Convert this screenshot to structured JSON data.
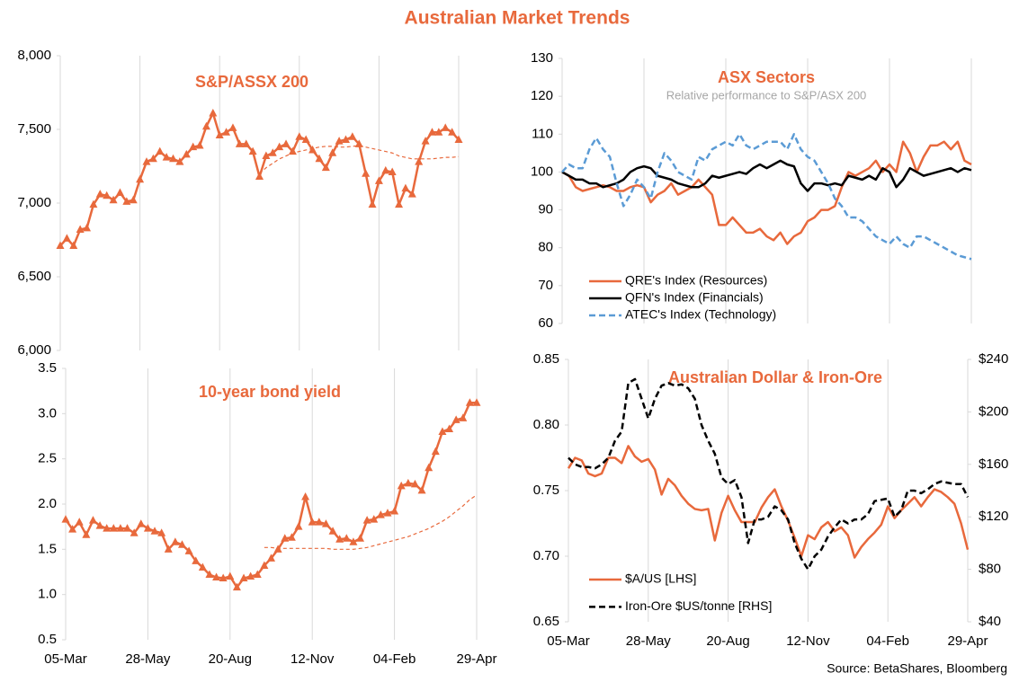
{
  "title": "Australian Market Trends",
  "source": "Source: BetaShares, Bloomberg",
  "chart_data": [
    {
      "type": "line",
      "title": "S&P/ASSX 200",
      "grid": "vertical",
      "ylim": [
        6000,
        8000
      ],
      "yticks": [
        {
          "value": 6000,
          "label": "6,000"
        },
        {
          "value": 6500,
          "label": "6,500"
        },
        {
          "value": 7000,
          "label": "7,000"
        },
        {
          "value": 7500,
          "label": "7,500"
        },
        {
          "value": 8000,
          "label": "8,000"
        }
      ],
      "series": [
        {
          "color": "#e8693c",
          "marker": "triangle",
          "values": [
            6710,
            6760,
            6710,
            6820,
            6830,
            6990,
            7060,
            7050,
            7020,
            7070,
            7010,
            7020,
            7160,
            7280,
            7300,
            7350,
            7310,
            7300,
            7280,
            7330,
            7380,
            7390,
            7520,
            7610,
            7460,
            7480,
            7510,
            7400,
            7400,
            7350,
            7180,
            7320,
            7340,
            7380,
            7400,
            7350,
            7450,
            7430,
            7360,
            7300,
            7240,
            7340,
            7420,
            7430,
            7450,
            7400,
            7200,
            6990,
            7150,
            7220,
            7210,
            6990,
            7100,
            7060,
            7280,
            7420,
            7480,
            7480,
            7510,
            7480,
            7430
          ]
        },
        {
          "color": "#e8693c",
          "dash": true,
          "values": [
            null,
            null,
            null,
            null,
            null,
            null,
            null,
            null,
            null,
            null,
            null,
            null,
            null,
            null,
            null,
            null,
            null,
            null,
            null,
            null,
            null,
            null,
            null,
            null,
            null,
            null,
            null,
            null,
            null,
            null,
            7200,
            7240,
            7270,
            7300,
            7320,
            7340,
            7350,
            7360,
            7370,
            7380,
            7385,
            7385,
            7380,
            7380,
            7385,
            7390,
            7380,
            7370,
            7360,
            7350,
            7340,
            7320,
            7310,
            7300,
            7300,
            7300,
            7300,
            7305,
            7310,
            7310,
            7315
          ]
        }
      ]
    },
    {
      "type": "line",
      "title": "10-year bond yield",
      "grid": "vertical",
      "categories": [
        "05-Mar",
        null,
        null,
        null,
        null,
        null,
        null,
        null,
        null,
        null,
        null,
        null,
        "28-May",
        null,
        null,
        null,
        null,
        null,
        null,
        null,
        null,
        null,
        null,
        null,
        "20-Aug",
        null,
        null,
        null,
        null,
        null,
        null,
        null,
        null,
        null,
        null,
        null,
        "12-Nov",
        null,
        null,
        null,
        null,
        null,
        null,
        null,
        null,
        null,
        null,
        null,
        "04-Feb",
        null,
        null,
        null,
        null,
        null,
        null,
        null,
        null,
        null,
        null,
        null,
        "29-Apr"
      ],
      "ylim": [
        0.5,
        3.5
      ],
      "yticks": [
        0.5,
        {
          "value": 1,
          "label": "1.0"
        },
        1.5,
        {
          "value": 2,
          "label": "2.0"
        },
        2.5,
        {
          "value": 3,
          "label": "3.0"
        },
        3.5
      ],
      "series": [
        {
          "color": "#e8693c",
          "marker": "triangle",
          "values": [
            1.83,
            1.72,
            1.8,
            1.66,
            1.82,
            1.76,
            1.73,
            1.73,
            1.73,
            1.73,
            1.68,
            1.78,
            1.73,
            1.7,
            1.68,
            1.5,
            1.58,
            1.55,
            1.48,
            1.37,
            1.3,
            1.22,
            1.19,
            1.18,
            1.2,
            1.08,
            1.18,
            1.2,
            1.22,
            1.32,
            1.4,
            1.5,
            1.62,
            1.63,
            1.75,
            2.08,
            1.8,
            1.8,
            1.78,
            1.7,
            1.61,
            1.62,
            1.58,
            1.62,
            1.82,
            1.83,
            1.88,
            1.9,
            1.92,
            2.2,
            2.23,
            2.22,
            2.15,
            2.4,
            2.58,
            2.8,
            2.83,
            2.93,
            2.95,
            3.12,
            3.12
          ]
        },
        {
          "color": "#e8693c",
          "dash": true,
          "values": [
            null,
            null,
            null,
            null,
            null,
            null,
            null,
            null,
            null,
            null,
            null,
            null,
            null,
            null,
            null,
            null,
            null,
            null,
            null,
            null,
            null,
            null,
            null,
            null,
            null,
            null,
            null,
            null,
            null,
            1.52,
            1.52,
            1.51,
            1.51,
            1.51,
            1.51,
            1.51,
            1.51,
            1.51,
            1.51,
            1.5,
            1.5,
            1.5,
            1.5,
            1.51,
            1.52,
            1.54,
            1.56,
            1.58,
            1.6,
            1.62,
            1.64,
            1.67,
            1.7,
            1.73,
            1.77,
            1.81,
            1.86,
            1.92,
            1.98,
            2.05,
            2.1
          ]
        }
      ]
    },
    {
      "type": "line",
      "title": "ASX Sectors",
      "subtitle": "Relative performance to S&P/ASX 200",
      "grid": "vertical",
      "legend": "lower left",
      "ylim": [
        60,
        130
      ],
      "yticks": [
        60,
        70,
        80,
        90,
        100,
        110,
        120,
        130
      ],
      "series": [
        {
          "name": "QRE's Index (Resources)",
          "color": "#e8693c",
          "values": [
            100,
            99,
            96,
            95,
            95.5,
            96,
            96.5,
            96,
            95,
            95,
            96,
            96.5,
            96,
            92,
            94,
            95,
            97,
            94,
            95,
            96,
            98,
            96,
            94,
            86,
            86,
            88,
            86,
            84,
            84,
            85,
            83,
            82,
            84,
            81,
            83,
            84,
            87,
            88,
            90,
            90,
            91,
            96,
            100,
            99,
            100,
            101,
            103,
            100,
            102,
            100,
            108,
            105,
            100,
            104,
            107,
            107,
            108,
            106,
            108,
            103,
            102
          ]
        },
        {
          "name": "QFN's Index (Financials)",
          "color": "#000000",
          "values": [
            100,
            99,
            98,
            98,
            97,
            97,
            96,
            96.5,
            97,
            98,
            100,
            101,
            101.5,
            101,
            99,
            98.5,
            98,
            97,
            96.5,
            96,
            96,
            97,
            99,
            98.5,
            99,
            99.5,
            100,
            99.5,
            101,
            102,
            101,
            102,
            103,
            102,
            101.5,
            97,
            95,
            97,
            97,
            96.5,
            97,
            96.5,
            99,
            98.5,
            98,
            99,
            98,
            101,
            100,
            96,
            98,
            101,
            100,
            99,
            99.5,
            100,
            100.5,
            101,
            100,
            101,
            100.5
          ]
        },
        {
          "name": "ATEC's Index (Technology)",
          "color": "#5b9bd5",
          "dash": true,
          "values": [
            100,
            102,
            101,
            101,
            106,
            109,
            106,
            104,
            97,
            91,
            94,
            98,
            96,
            93,
            100,
            105,
            103,
            100,
            99,
            98,
            104,
            103,
            106,
            107,
            108,
            107,
            110,
            107,
            106,
            107,
            108,
            108,
            108,
            106,
            110,
            106,
            104,
            103,
            100,
            97,
            93,
            91,
            88,
            88,
            87,
            85,
            83,
            82,
            81,
            83,
            81,
            80,
            83,
            83,
            82,
            81,
            80,
            79,
            78,
            77.5,
            77
          ]
        }
      ]
    },
    {
      "type": "line",
      "title": "Australian Dollar & Iron-Ore",
      "grid": "vertical",
      "legend": "lower left",
      "categories": [
        "05-Mar",
        null,
        null,
        null,
        null,
        null,
        null,
        null,
        null,
        null,
        null,
        null,
        "28-May",
        null,
        null,
        null,
        null,
        null,
        null,
        null,
        null,
        null,
        null,
        null,
        "20-Aug",
        null,
        null,
        null,
        null,
        null,
        null,
        null,
        null,
        null,
        null,
        null,
        "12-Nov",
        null,
        null,
        null,
        null,
        null,
        null,
        null,
        null,
        null,
        null,
        null,
        "04-Feb",
        null,
        null,
        null,
        null,
        null,
        null,
        null,
        null,
        null,
        null,
        null,
        "29-Apr"
      ],
      "ylim": [
        0.65,
        0.85
      ],
      "yticks": [
        0.65,
        {
          "value": 0.7,
          "label": "0.70"
        },
        0.75,
        {
          "value": 0.8,
          "label": "0.80"
        },
        0.85
      ],
      "y2lim": [
        40,
        240
      ],
      "y2ticks": [
        {
          "value": 40,
          "label": "$40"
        },
        {
          "value": 80,
          "label": "$80"
        },
        {
          "value": 120,
          "label": "$120"
        },
        {
          "value": 160,
          "label": "$160"
        },
        {
          "value": 200,
          "label": "$200"
        },
        {
          "value": 240,
          "label": "$240"
        }
      ],
      "series": [
        {
          "name": "$A/US [LHS]",
          "color": "#e8693c",
          "values": [
            0.767,
            0.775,
            0.773,
            0.763,
            0.761,
            0.763,
            0.775,
            0.775,
            0.771,
            0.784,
            0.776,
            0.772,
            0.774,
            0.766,
            0.747,
            0.759,
            0.754,
            0.746,
            0.74,
            0.736,
            0.735,
            0.736,
            0.712,
            0.733,
            0.746,
            0.735,
            0.726,
            0.726,
            0.726,
            0.737,
            0.745,
            0.751,
            0.738,
            0.727,
            0.714,
            0.7,
            0.716,
            0.713,
            0.722,
            0.726,
            0.719,
            0.722,
            0.716,
            0.699,
            0.707,
            0.713,
            0.718,
            0.724,
            0.738,
            0.729,
            0.735,
            0.74,
            0.745,
            0.738,
            0.745,
            0.751,
            0.749,
            0.745,
            0.74,
            0.725,
            0.705
          ]
        },
        {
          "name": "Iron-Ore $US/tonne [RHS]",
          "color": "#000000",
          "dash": true,
          "axis": "y2",
          "values": [
            165,
            160,
            158,
            158,
            157,
            160,
            165,
            178,
            185,
            222,
            225,
            210,
            195,
            210,
            220,
            222,
            220,
            221,
            218,
            210,
            190,
            178,
            168,
            150,
            145,
            148,
            135,
            100,
            118,
            118,
            120,
            128,
            125,
            118,
            100,
            88,
            80,
            90,
            95,
            105,
            112,
            118,
            115,
            118,
            118,
            122,
            132,
            133,
            134,
            120,
            125,
            140,
            140,
            138,
            141,
            145,
            147,
            146,
            145,
            145,
            135
          ]
        }
      ]
    }
  ]
}
